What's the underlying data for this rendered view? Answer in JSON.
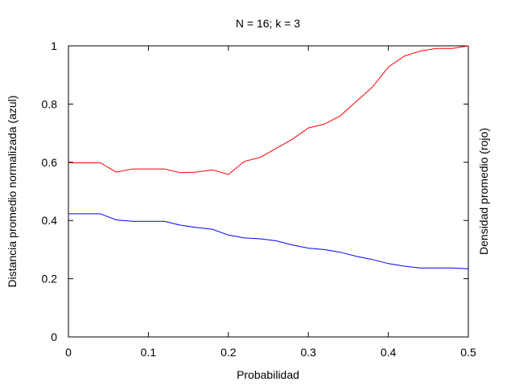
{
  "chart_data": {
    "type": "line",
    "title": "N = 16; k = 3",
    "xlabel": "Probabilidad",
    "ylabel": "Distancia promedio normalizada (azul)",
    "y2label": "Densidad promedio (rojo)",
    "xlim": [
      0,
      0.5
    ],
    "ylim": [
      0,
      1
    ],
    "xticks": [
      {
        "value": 0,
        "label": "0"
      },
      {
        "value": 0.1,
        "label": "0.1"
      },
      {
        "value": 0.2,
        "label": "0.2"
      },
      {
        "value": 0.3,
        "label": "0.3"
      },
      {
        "value": 0.4,
        "label": "0.4"
      },
      {
        "value": 0.5,
        "label": "0.5"
      }
    ],
    "yticks": [
      {
        "value": 0,
        "label": "0"
      },
      {
        "value": 0.2,
        "label": "0.2"
      },
      {
        "value": 0.4,
        "label": "0.4"
      },
      {
        "value": 0.6,
        "label": "0.6"
      },
      {
        "value": 0.8,
        "label": "0.8"
      },
      {
        "value": 1,
        "label": "1"
      }
    ],
    "grid": false,
    "x": [
      0,
      0.02,
      0.04,
      0.06,
      0.08,
      0.1,
      0.12,
      0.14,
      0.16,
      0.18,
      0.2,
      0.22,
      0.24,
      0.26,
      0.28,
      0.3,
      0.32,
      0.34,
      0.36,
      0.38,
      0.4,
      0.42,
      0.44,
      0.46,
      0.48,
      0.5
    ],
    "series": [
      {
        "color": "#0000ff",
        "values": [
          0.423,
          0.423,
          0.423,
          0.402,
          0.397,
          0.397,
          0.397,
          0.384,
          0.376,
          0.37,
          0.35,
          0.34,
          0.337,
          0.33,
          0.316,
          0.305,
          0.3,
          0.291,
          0.277,
          0.266,
          0.252,
          0.243,
          0.237,
          0.237,
          0.237,
          0.234
        ]
      },
      {
        "color": "#ff0000",
        "values": [
          0.598,
          0.598,
          0.598,
          0.566,
          0.577,
          0.577,
          0.577,
          0.564,
          0.566,
          0.574,
          0.558,
          0.603,
          0.617,
          0.648,
          0.679,
          0.718,
          0.731,
          0.76,
          0.809,
          0.858,
          0.927,
          0.965,
          0.982,
          0.991,
          0.991,
          1.0
        ]
      }
    ]
  }
}
